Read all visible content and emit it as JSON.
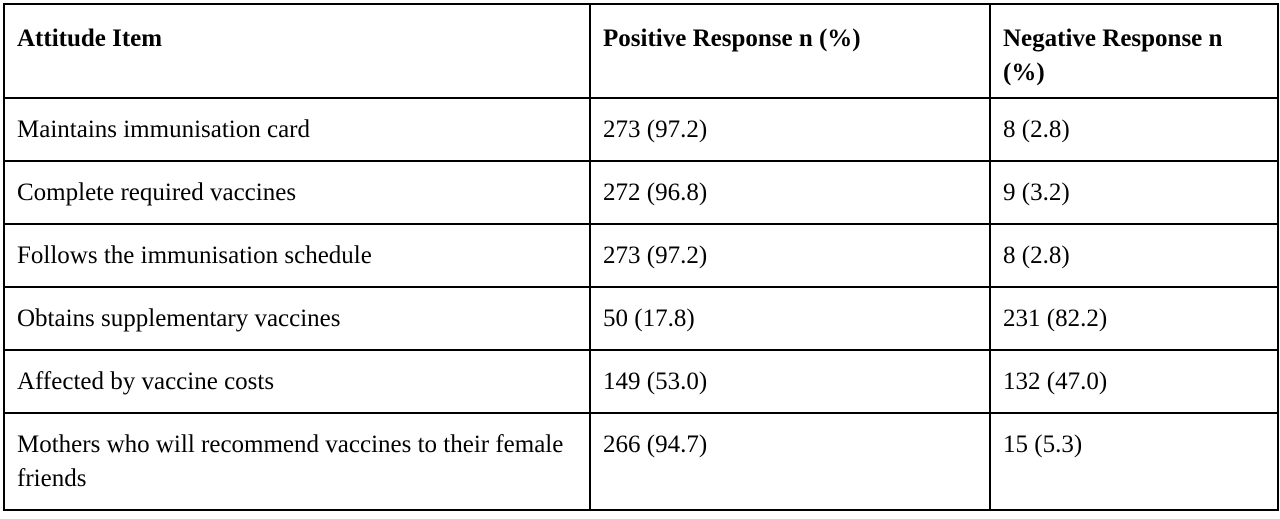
{
  "table": {
    "headers": [
      "Attitude Item",
      "Positive Response n (%)",
      "Negative Response n (%)"
    ],
    "rows": [
      [
        "Maintains immunisation card",
        "273 (97.2)",
        "8 (2.8)"
      ],
      [
        "Complete required vaccines",
        "272 (96.8)",
        "9 (3.2)"
      ],
      [
        "Follows the immunisation schedule",
        "273 (97.2)",
        "8 (2.8)"
      ],
      [
        "Obtains supplementary vaccines",
        "50 (17.8)",
        "231 (82.2)"
      ],
      [
        "Affected by vaccine costs",
        "149 (53.0)",
        "132 (47.0)"
      ],
      [
        "Mothers who will recommend vaccines to their female friends",
        "266 (94.7)",
        "15 (5.3)"
      ]
    ]
  }
}
